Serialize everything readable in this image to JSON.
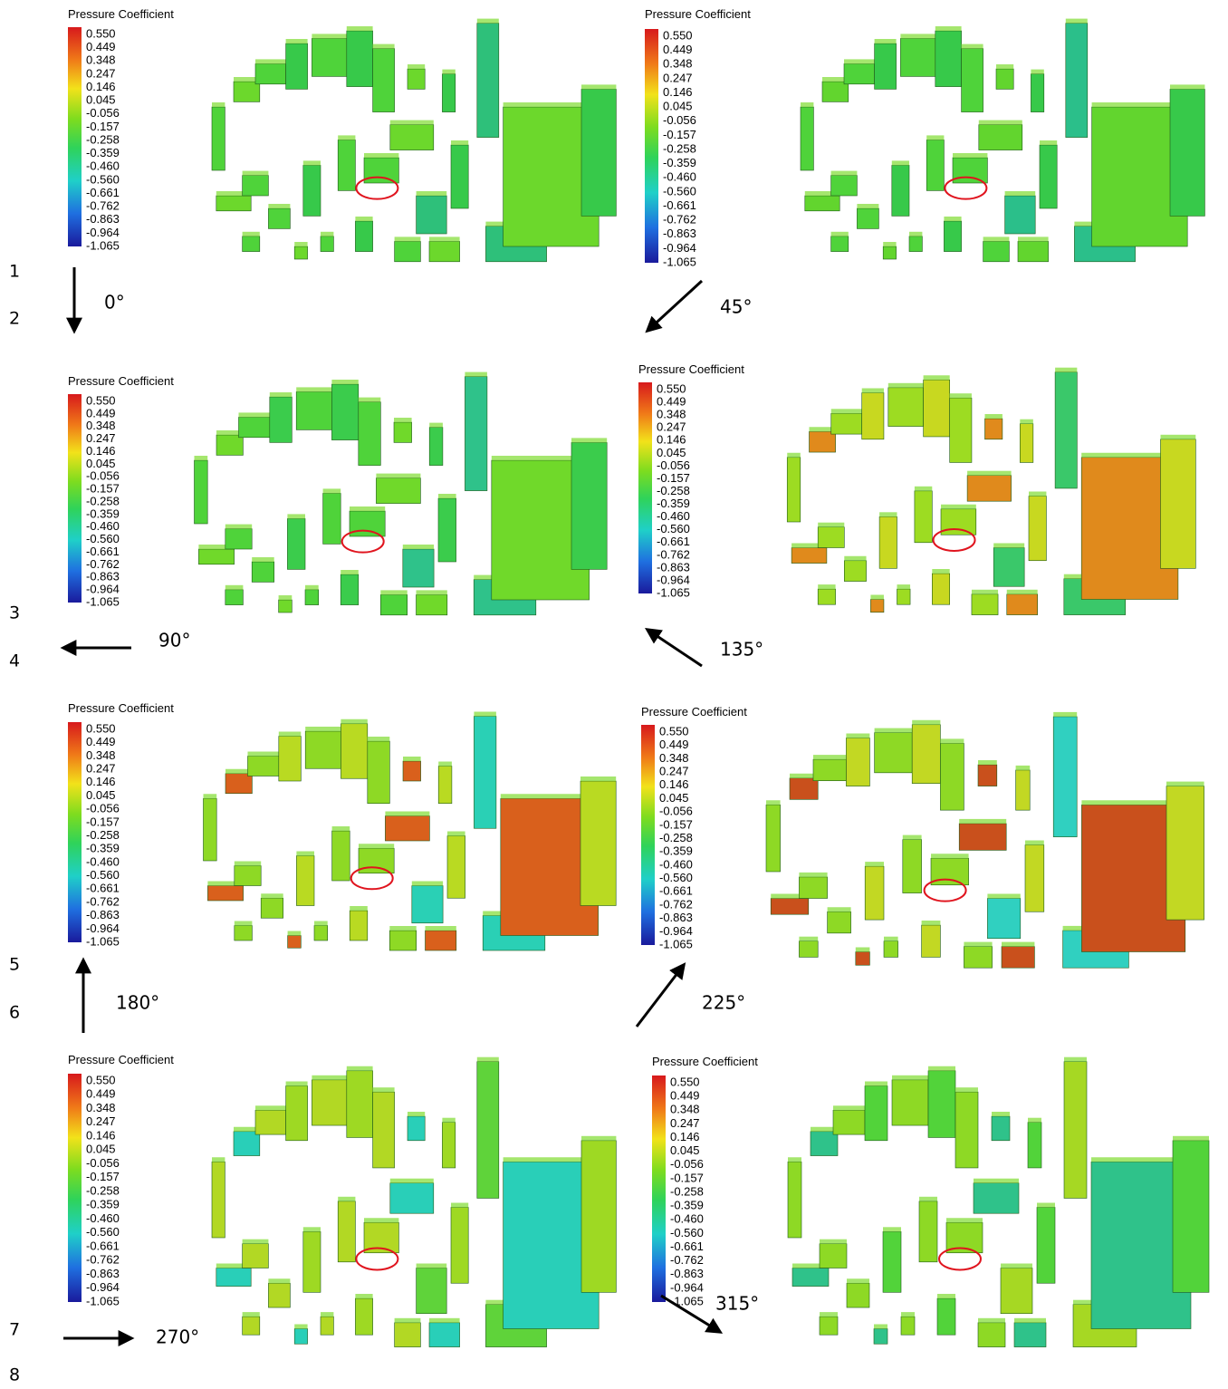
{
  "figure": {
    "panels": [
      {
        "legend_title": "Pressure Coefficient",
        "legend_labels": [
          "0.550",
          "0.449",
          "0.348",
          "0.247",
          "0.146",
          "0.045",
          "-0.056",
          "-0.157",
          "-0.258",
          "-0.359",
          "-0.460",
          "-0.560",
          "-0.661",
          "-0.762",
          "-0.863",
          "-0.964",
          "-1.065"
        ],
        "angle": "0°"
      },
      {
        "legend_title": "Pressure Coefficient",
        "legend_labels": [
          "0.550",
          "0.449",
          "0.348",
          "0.247",
          "0.146",
          "0.045",
          "-0.056",
          "-0.157",
          "-0.258",
          "-0.359",
          "-0.460",
          "-0.560",
          "-0.661",
          "-0.762",
          "-0.863",
          "-0.964",
          "-1.065"
        ],
        "angle": "45°"
      },
      {
        "legend_title": "Pressure Coefficient",
        "legend_labels": [
          "0.550",
          "0.449",
          "0.348",
          "0.247",
          "0.146",
          "0.045",
          "-0.056",
          "-0.157",
          "-0.258",
          "-0.359",
          "-0.460",
          "-0.560",
          "-0.661",
          "-0.762",
          "-0.863",
          "-0.964",
          "-1.065"
        ],
        "angle": "90°"
      },
      {
        "legend_title": "Pressure Coefficient",
        "legend_labels": [
          "0.550",
          "0.449",
          "0.348",
          "0.247",
          "0.146",
          "0.045",
          "-0.056",
          "-0.157",
          "-0.258",
          "-0.359",
          "-0.460",
          "-0.560",
          "-0.661",
          "-0.762",
          "-0.863",
          "-0.964",
          "-1.065"
        ],
        "angle": "135°"
      },
      {
        "legend_title": "Pressure Coefficient",
        "legend_labels": [
          "0.550",
          "0.449",
          "0.348",
          "0.247",
          "0.146",
          "0.045",
          "-0.056",
          "-0.157",
          "-0.258",
          "-0.359",
          "-0.460",
          "-0.560",
          "-0.661",
          "-0.762",
          "-0.863",
          "-0.964",
          "-1.065"
        ],
        "angle": "180°"
      },
      {
        "legend_title": "Pressure Coefficient",
        "legend_labels": [
          "0.550",
          "0.449",
          "0.348",
          "0.247",
          "0.146",
          "0.045",
          "-0.056",
          "-0.157",
          "-0.258",
          "-0.359",
          "-0.460",
          "-0.560",
          "-0.661",
          "-0.762",
          "-0.863",
          "-0.964",
          "-1.065"
        ],
        "angle": "225°"
      },
      {
        "legend_title": "Pressure Coefficient",
        "legend_labels": [
          "0.550",
          "0.449",
          "0.348",
          "0.247",
          "0.146",
          "0.045",
          "-0.056",
          "-0.157",
          "-0.258",
          "-0.359",
          "-0.460",
          "-0.560",
          "-0.661",
          "-0.762",
          "-0.863",
          "-0.964",
          "-1.065"
        ],
        "angle": "270°"
      },
      {
        "legend_title": "Pressure Coefficient",
        "legend_labels": [
          "0.550",
          "0.449",
          "0.348",
          "0.247",
          "0.146",
          "0.045",
          "-0.056",
          "-0.157",
          "-0.258",
          "-0.359",
          "-0.460",
          "-0.560",
          "-0.661",
          "-0.762",
          "-0.863",
          "-0.964",
          "-1.065"
        ],
        "angle": "315°"
      }
    ],
    "line_numbers": [
      "1",
      "2",
      "3",
      "4",
      "5",
      "6",
      "7",
      "8"
    ]
  }
}
